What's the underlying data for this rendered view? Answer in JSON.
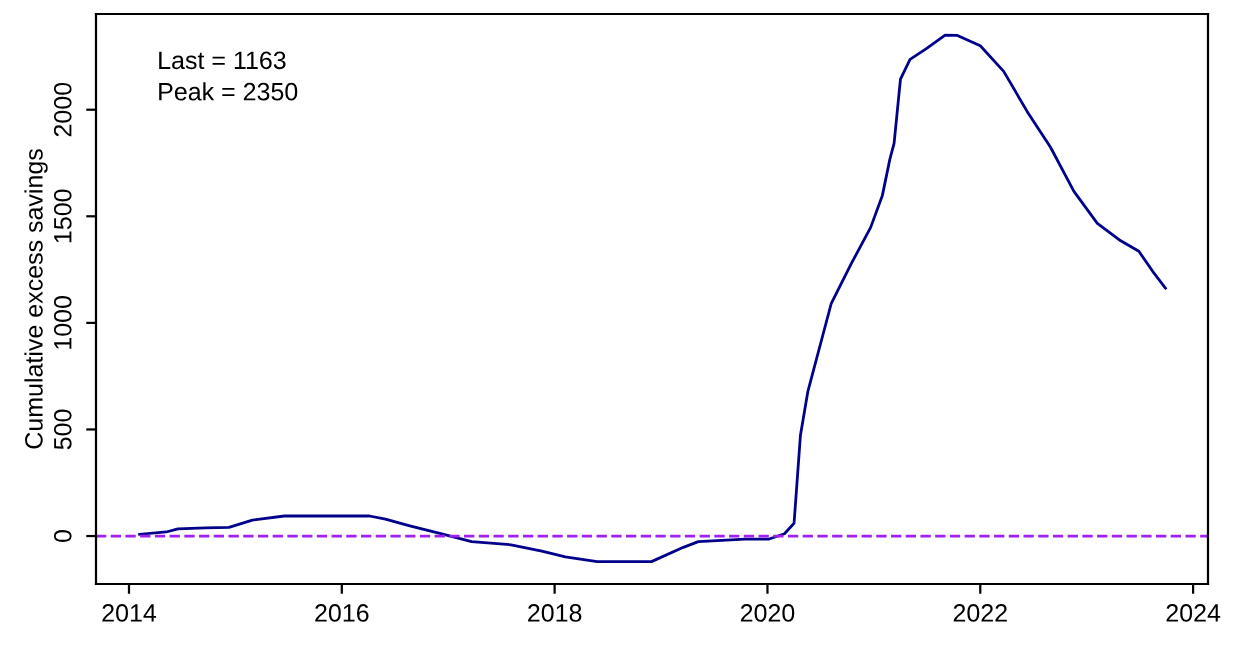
{
  "chart_data": {
    "type": "line",
    "ylabel": "Cumulative excess savings",
    "annotations": [
      "Last = 1163",
      "Peak = 2350"
    ],
    "x": [
      2014.1,
      2014.35,
      2014.46,
      2014.72,
      2014.94,
      2015.16,
      2015.46,
      2016.26,
      2016.41,
      2016.63,
      2016.93,
      2017.22,
      2017.59,
      2017.88,
      2018.1,
      2018.4,
      2018.91,
      2019.21,
      2019.35,
      2019.79,
      2020.01,
      2020.16,
      2020.25,
      2020.31,
      2020.38,
      2020.6,
      2020.79,
      2020.97,
      2021.08,
      2021.15,
      2021.19,
      2021.25,
      2021.34,
      2021.49,
      2021.67,
      2021.78,
      2022.0,
      2022.22,
      2022.44,
      2022.66,
      2022.88,
      2023.1,
      2023.32,
      2023.49,
      2023.62,
      2023.74
    ],
    "series": [
      {
        "color": "#00008b",
        "values": [
          8,
          19,
          34,
          38,
          41,
          75,
          94,
          94,
          79,
          49,
          11,
          -26,
          -41,
          -71,
          -98,
          -120,
          -120,
          -53,
          -26,
          -15,
          -15,
          11,
          60,
          473,
          679,
          1092,
          1280,
          1448,
          1598,
          1767,
          1842,
          2143,
          2236,
          2285,
          2350,
          2349,
          2300,
          2180,
          1992,
          1824,
          1617,
          1467,
          1385,
          1336,
          1242,
          1163
        ]
      }
    ],
    "ref_lines": [
      {
        "axis": "y",
        "value": 0,
        "color": "#a020f0",
        "line_style": "dashed"
      }
    ],
    "xlim": [
      2013.69,
      2024.14
    ],
    "ylim": [
      -225,
      2449
    ],
    "xticks": [
      2014,
      2016,
      2018,
      2020,
      2022,
      2024
    ],
    "yticks": [
      0,
      500,
      1000,
      1500,
      2000
    ],
    "grid": false,
    "legend": false,
    "marker": "none",
    "line_style": "solid"
  }
}
